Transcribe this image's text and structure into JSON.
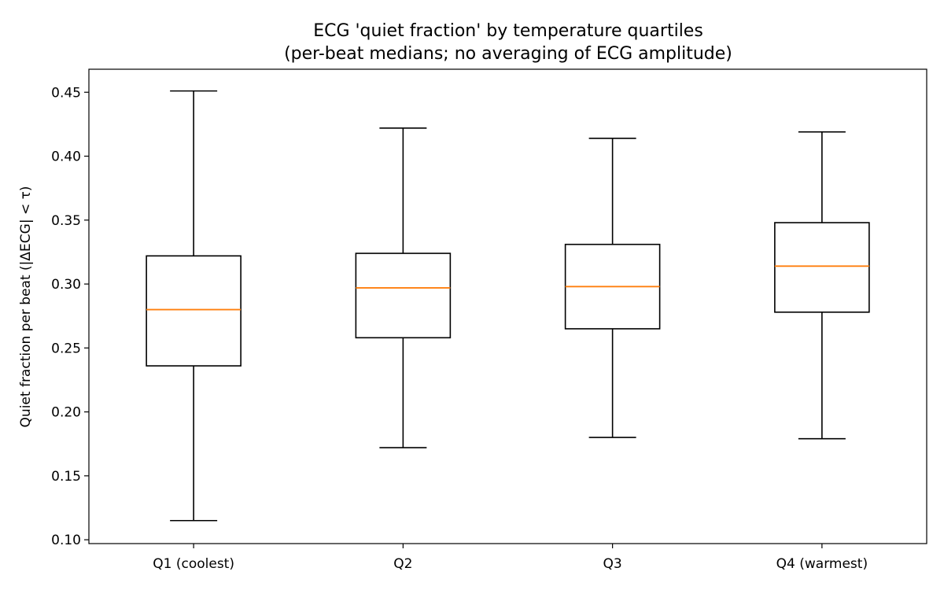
{
  "chart_data": {
    "type": "box",
    "title": "ECG 'quiet fraction' by temperature quartiles",
    "subtitle": "(per-beat medians; no averaging of ECG amplitude)",
    "xlabel": "",
    "ylabel": "Quiet fraction per beat  (|ΔECG| < τ)",
    "ylim": [
      0.097,
      0.468
    ],
    "yticks": [
      0.1,
      0.15,
      0.2,
      0.25,
      0.3,
      0.35,
      0.4,
      0.45
    ],
    "ytick_labels": [
      "0.10",
      "0.15",
      "0.20",
      "0.25",
      "0.30",
      "0.35",
      "0.40",
      "0.45"
    ],
    "grid": false,
    "categories": [
      "Q1 (coolest)",
      "Q2",
      "Q3",
      "Q4 (warmest)"
    ],
    "boxes": [
      {
        "whisker_low": 0.115,
        "q1": 0.236,
        "median": 0.28,
        "q3": 0.322,
        "whisker_high": 0.451
      },
      {
        "whisker_low": 0.172,
        "q1": 0.258,
        "median": 0.297,
        "q3": 0.324,
        "whisker_high": 0.422
      },
      {
        "whisker_low": 0.18,
        "q1": 0.265,
        "median": 0.298,
        "q3": 0.331,
        "whisker_high": 0.414
      },
      {
        "whisker_low": 0.179,
        "q1": 0.278,
        "median": 0.314,
        "q3": 0.348,
        "whisker_high": 0.419
      }
    ],
    "colors": {
      "box": "#000000",
      "median": "#ff7f0e",
      "axes": "#000000"
    }
  }
}
